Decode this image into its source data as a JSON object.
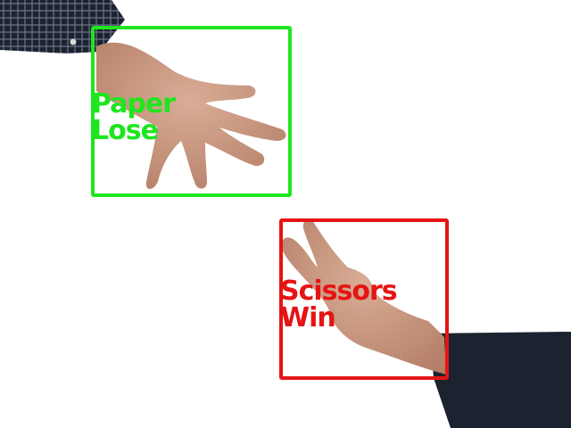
{
  "scene": {
    "background_color": "#ffffff",
    "skin_color": "#c9977f",
    "sleeve_color": "#1c2230"
  },
  "detections": [
    {
      "gesture": "Paper",
      "result": "Lose",
      "color": "#1ee61e",
      "subject": "open-hand-paper"
    },
    {
      "gesture": "Scissors",
      "result": "Win",
      "color": "#e61414",
      "subject": "two-finger-hand-scissors"
    }
  ]
}
